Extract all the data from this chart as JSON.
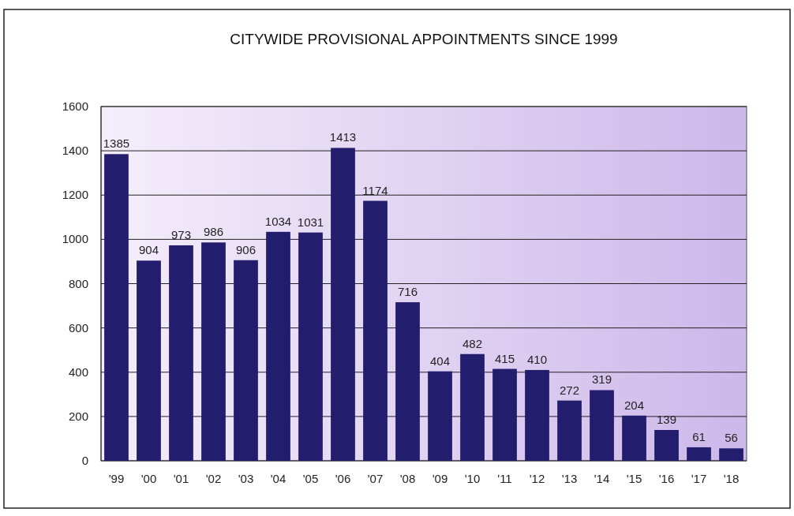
{
  "chart_data": {
    "type": "bar",
    "title": "CITYWIDE PROVISIONAL APPOINTMENTS SINCE 1999",
    "categories": [
      "'99",
      "'00",
      "'01",
      "'02",
      "'03",
      "'04",
      "'05",
      "'06",
      "'07",
      "'08",
      "'09",
      "'10",
      "'11",
      "'12",
      "'13",
      "'14",
      "'15",
      "'16",
      "'17",
      "'18"
    ],
    "values": [
      1385,
      904,
      973,
      986,
      906,
      1034,
      1031,
      1413,
      1174,
      716,
      404,
      482,
      415,
      410,
      272,
      319,
      204,
      139,
      61,
      56
    ],
    "color": "#231d6e",
    "ylim": [
      0,
      1600
    ],
    "yticks": [
      0,
      200,
      400,
      600,
      800,
      1000,
      1200,
      1400,
      1600
    ],
    "grid": "y",
    "data_labels": true
  }
}
